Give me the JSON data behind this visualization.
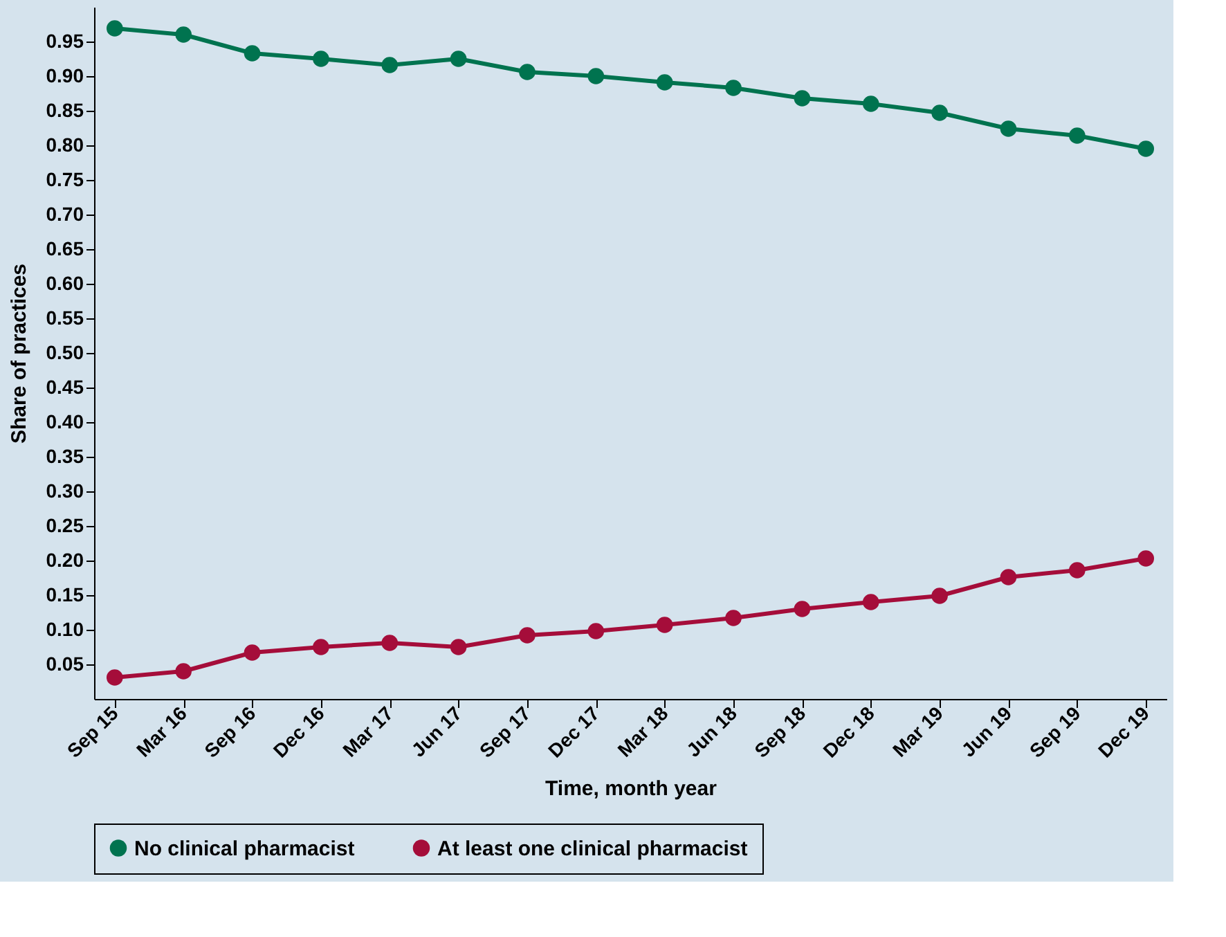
{
  "chart_data": {
    "type": "line",
    "xlabel": "Time, month year",
    "ylabel": "Share of practices",
    "categories": [
      "Sep 15",
      "Mar 16",
      "Sep 16",
      "Dec 16",
      "Mar 17",
      "Jun 17",
      "Sep 17",
      "Dec 17",
      "Mar 18",
      "Jun 18",
      "Sep 18",
      "Dec 18",
      "Mar 19",
      "Jun 19",
      "Sep 19",
      "Dec 19"
    ],
    "series": [
      {
        "name": "No clinical pharmacist",
        "color": "#00734f",
        "values": [
          0.969,
          0.96,
          0.933,
          0.925,
          0.916,
          0.925,
          0.906,
          0.9,
          0.891,
          0.883,
          0.868,
          0.86,
          0.847,
          0.824,
          0.814,
          0.795
        ]
      },
      {
        "name": "At least one clinical pharmacist",
        "color": "#a50d3a",
        "values": [
          0.031,
          0.04,
          0.067,
          0.075,
          0.081,
          0.075,
          0.092,
          0.098,
          0.107,
          0.117,
          0.13,
          0.14,
          0.149,
          0.176,
          0.186,
          0.203
        ]
      }
    ],
    "ylim": [
      0,
      1.0
    ],
    "yticks": [
      0.05,
      {
        "value": 0.1,
        "label": "0.10"
      },
      0.15,
      {
        "value": 0.2,
        "label": "0.20"
      },
      0.25,
      {
        "value": 0.3,
        "label": "0.30"
      },
      0.35,
      {
        "value": 0.4,
        "label": "0.40"
      },
      0.45,
      {
        "value": 0.5,
        "label": "0.50"
      },
      0.55,
      {
        "value": 0.6,
        "label": "0.60"
      },
      0.65,
      {
        "value": 0.7,
        "label": "0.70"
      },
      0.75,
      {
        "value": 0.8,
        "label": "0.80"
      },
      0.85,
      {
        "value": 0.9,
        "label": "0.90"
      },
      0.95
    ],
    "grid": false,
    "legend": "bottom",
    "marker": "circle",
    "line_style": "solid"
  }
}
